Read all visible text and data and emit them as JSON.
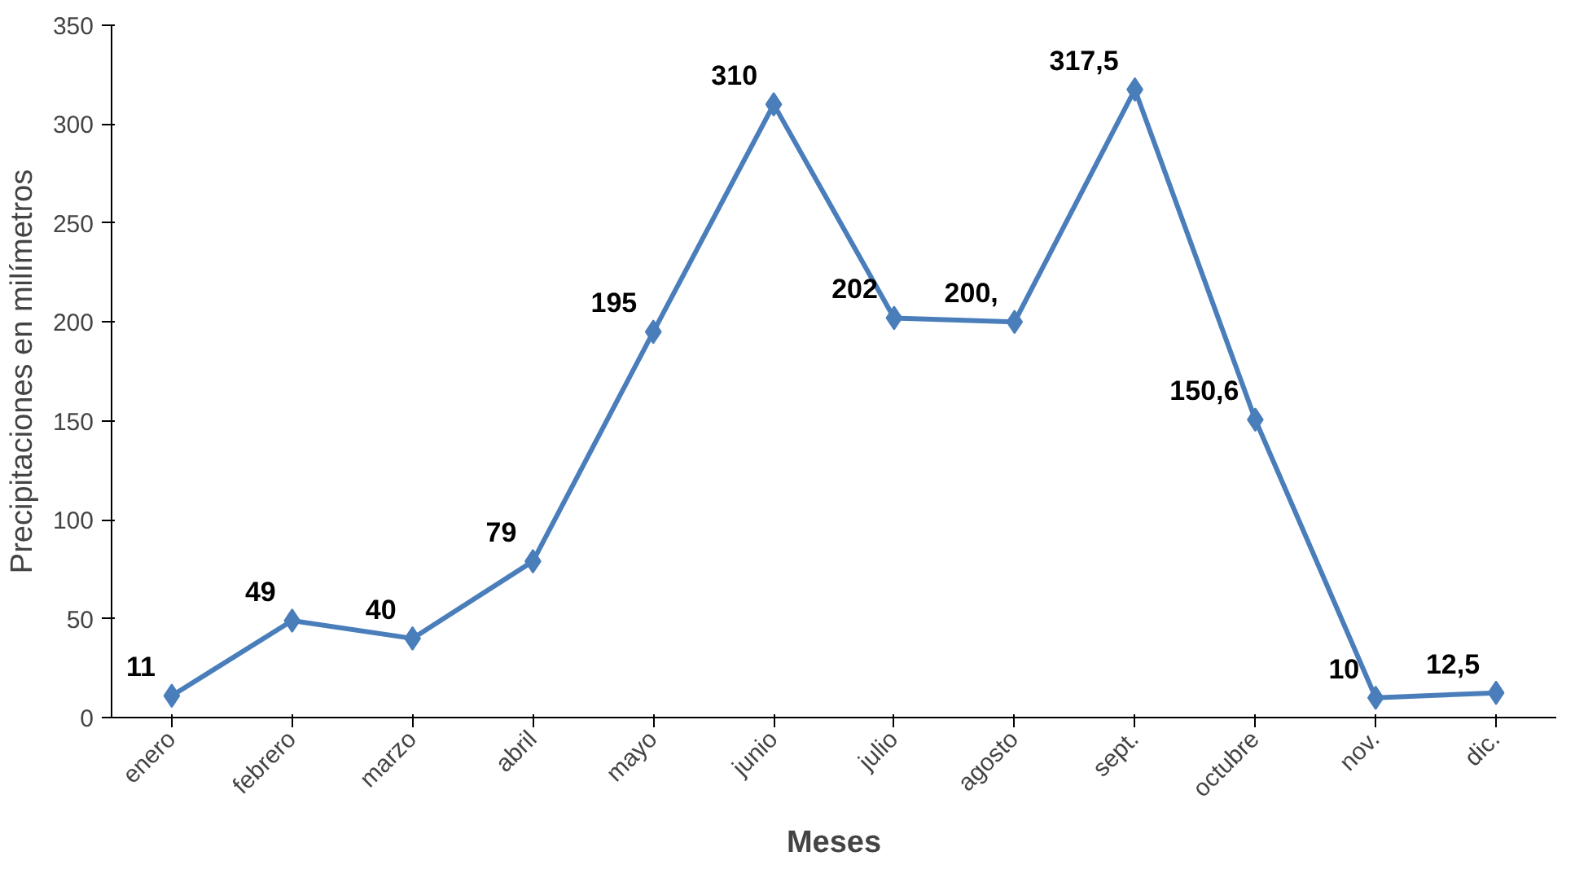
{
  "chart_data": {
    "type": "line",
    "xlabel": "Meses",
    "ylabel": "Precipitaciones en milímetros",
    "categories": [
      "enero",
      "febrero",
      "marzo",
      "abril",
      "mayo",
      "junio",
      "julio",
      "agosto",
      "sept.",
      "octubre",
      "nov.",
      "dic."
    ],
    "series": [
      {
        "color": "#4a7ebb",
        "values": [
          11,
          49,
          40,
          79,
          195,
          310,
          202,
          200,
          317.5,
          150.6,
          10,
          12.5
        ],
        "value_labels": [
          "11",
          "49",
          "40",
          "79",
          "195",
          "310",
          "202",
          "200,",
          "317,5",
          "150,6",
          "10",
          "12,5"
        ]
      }
    ],
    "ylim": [
      0,
      350
    ],
    "yticks": [
      0,
      50,
      100,
      150,
      200,
      250,
      300,
      350
    ],
    "grid": false,
    "marker": "diamond",
    "line_style": "solid"
  }
}
